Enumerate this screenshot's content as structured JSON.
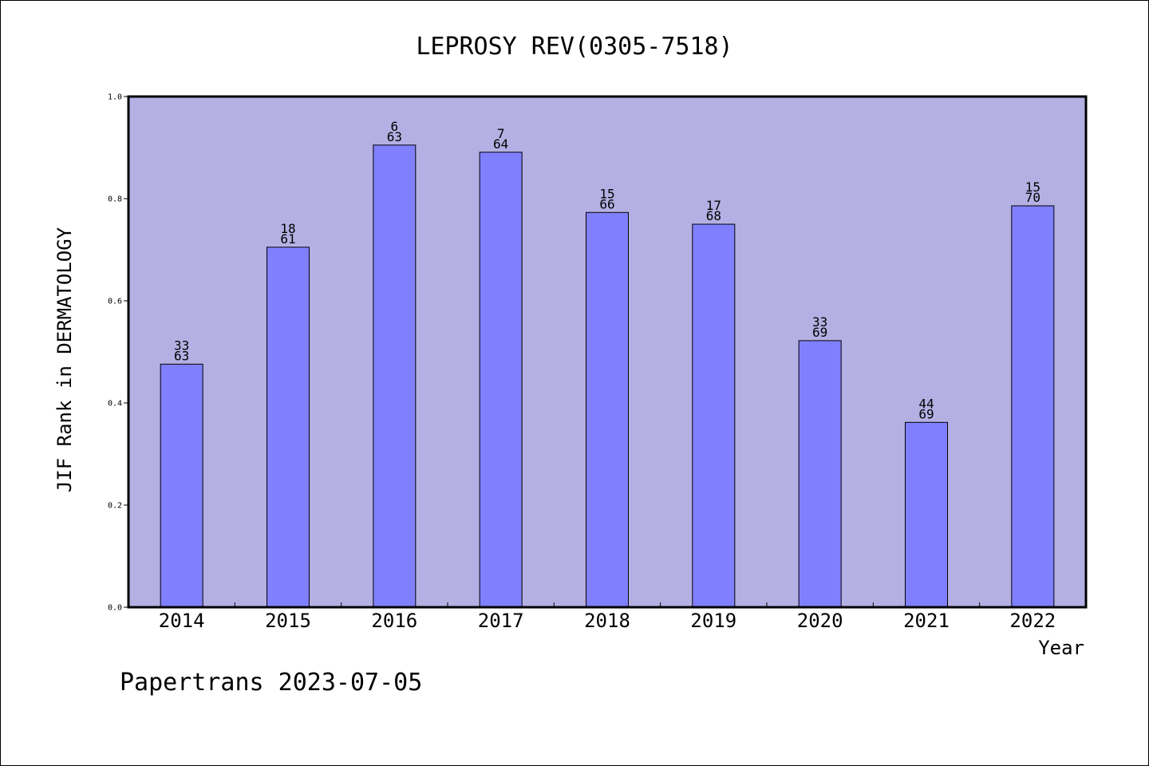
{
  "chart_data": {
    "type": "bar",
    "title": "LEPROSY REV(0305-7518)",
    "xlabel": "Year",
    "ylabel": "JIF Rank in DERMATOLOGY",
    "ylim": [
      0,
      1.0
    ],
    "yticks": [
      "0.0",
      "0.2",
      "0.4",
      "0.6",
      "0.8",
      "1.0"
    ],
    "grid": false,
    "categories": [
      "2014",
      "2015",
      "2016",
      "2017",
      "2018",
      "2019",
      "2020",
      "2021",
      "2022"
    ],
    "values": [
      0.476,
      0.705,
      0.905,
      0.891,
      0.773,
      0.75,
      0.522,
      0.362,
      0.786
    ],
    "ranks": [
      {
        "rank": "33",
        "total": "63"
      },
      {
        "rank": "18",
        "total": "61"
      },
      {
        "rank": "6",
        "total": "63"
      },
      {
        "rank": "7",
        "total": "64"
      },
      {
        "rank": "15",
        "total": "66"
      },
      {
        "rank": "17",
        "total": "68"
      },
      {
        "rank": "33",
        "total": "69"
      },
      {
        "rank": "44",
        "total": "69"
      },
      {
        "rank": "15",
        "total": "70"
      }
    ],
    "colors": {
      "plot_background": "#b5b0e3",
      "bar_fill": "#8080ff",
      "bar_stroke": "#000000"
    }
  },
  "footer": "Papertrans 2023-07-05"
}
